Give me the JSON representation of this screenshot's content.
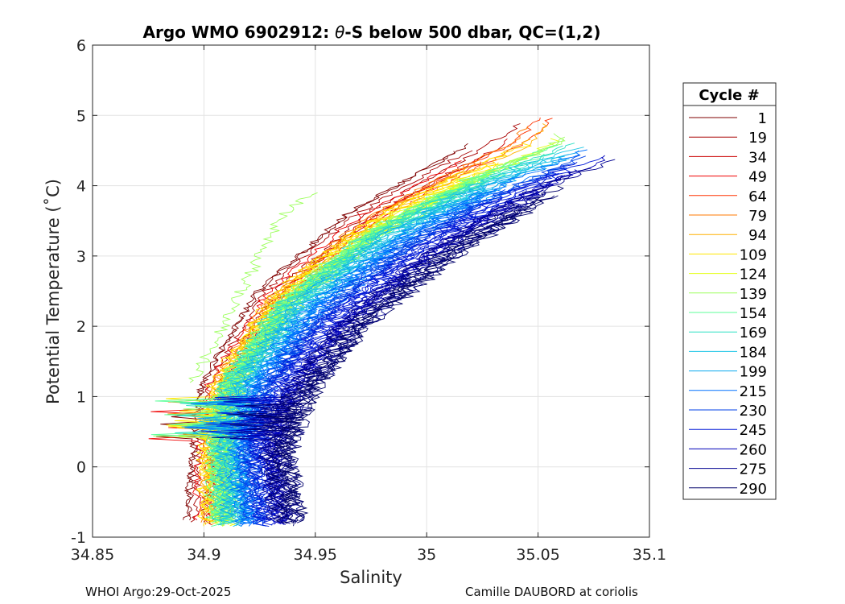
{
  "chart_data": {
    "type": "line",
    "title_prefix": "Argo WMO 6902912: ",
    "title_theta": "θ",
    "title_suffix": "-S below 500 dbar,  QC=(1,2)",
    "xlabel": "Salinity",
    "ylabel": "Potential Temperature (˚C)",
    "xlim": [
      34.85,
      35.1
    ],
    "ylim": [
      -1,
      6
    ],
    "xticks": [
      34.85,
      34.9,
      34.95,
      35,
      35.05,
      35.1
    ],
    "xtick_labels": [
      "34.85",
      "34.9",
      "34.95",
      "35",
      "35.05",
      "35.1"
    ],
    "yticks": [
      -1,
      0,
      1,
      2,
      3,
      4,
      5,
      6
    ],
    "ytick_labels": [
      "-1",
      "0",
      "1",
      "2",
      "3",
      "4",
      "5",
      "6"
    ],
    "grid": true,
    "legend_title": "Cycle #",
    "legend_position": "outside-right",
    "series": [
      {
        "name": "1",
        "color": "#7f0000"
      },
      {
        "name": "19",
        "color": "#a80000"
      },
      {
        "name": "34",
        "color": "#cc0000"
      },
      {
        "name": "49",
        "color": "#f00000"
      },
      {
        "name": "64",
        "color": "#ff3300"
      },
      {
        "name": "79",
        "color": "#ff7a00"
      },
      {
        "name": "94",
        "color": "#ffb000"
      },
      {
        "name": "109",
        "color": "#ffe600"
      },
      {
        "name": "124",
        "color": "#e4ff1a"
      },
      {
        "name": "139",
        "color": "#9dff5e"
      },
      {
        "name": "154",
        "color": "#5dff9a"
      },
      {
        "name": "169",
        "color": "#2de0c4"
      },
      {
        "name": "184",
        "color": "#1ec6e6"
      },
      {
        "name": "199",
        "color": "#0aa8ee"
      },
      {
        "name": "215",
        "color": "#0070ff"
      },
      {
        "name": "230",
        "color": "#0042e8"
      },
      {
        "name": "245",
        "color": "#0018d8"
      },
      {
        "name": "260",
        "color": "#0000b8"
      },
      {
        "name": "275",
        "color": "#00008f"
      },
      {
        "name": "290",
        "color": "#00006a"
      }
    ],
    "profile_envelope": {
      "early": {
        "color_series": "124",
        "points": [
          [
            34.898,
            -0.85
          ],
          [
            34.9,
            0.1
          ],
          [
            34.905,
            1.2
          ],
          [
            34.93,
            2.5
          ],
          [
            34.97,
            3.6
          ],
          [
            35.02,
            4.5
          ],
          [
            35.06,
            5.3
          ]
        ]
      },
      "mid": {
        "color_series": "199",
        "points": [
          [
            34.912,
            -0.85
          ],
          [
            34.91,
            0.3
          ],
          [
            34.915,
            1.2
          ],
          [
            34.94,
            2.3
          ],
          [
            34.98,
            3.3
          ],
          [
            35.03,
            4.1
          ],
          [
            35.07,
            4.6
          ]
        ]
      },
      "late": {
        "color_series": "275",
        "points": [
          [
            34.94,
            -0.85
          ],
          [
            34.935,
            0.2
          ],
          [
            34.945,
            1.0
          ],
          [
            34.97,
            2.0
          ],
          [
            35.01,
            3.0
          ],
          [
            35.05,
            3.8
          ],
          [
            35.09,
            4.4
          ]
        ]
      },
      "outlier_cycle_139": {
        "color_series": "139",
        "points": [
          [
            34.895,
            1.2
          ],
          [
            34.91,
            2.1
          ],
          [
            34.925,
            3.0
          ],
          [
            34.935,
            3.6
          ],
          [
            34.95,
            3.9
          ]
        ]
      }
    }
  },
  "footer": {
    "left": "WHOI Argo:29-Oct-2025",
    "right": "Camille DAUBORD at coriolis"
  }
}
